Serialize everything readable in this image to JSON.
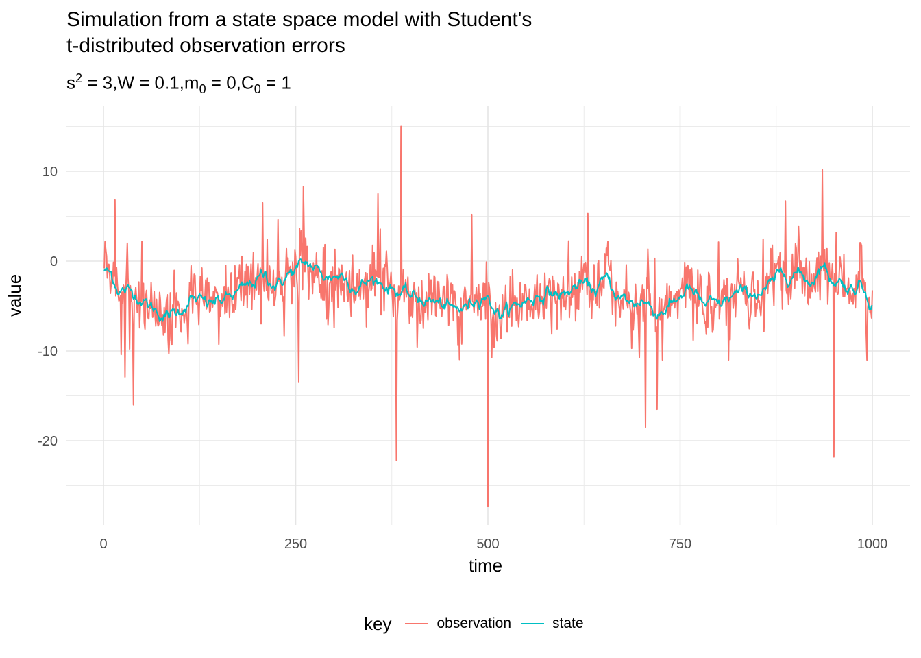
{
  "chart_data": {
    "type": "line",
    "title_lines": [
      "Simulation from a state space model with Student's",
      "t-distributed observation errors"
    ],
    "subtitle": {
      "s_base": "s",
      "s_sup": "2",
      "s_val": " = 3,",
      "w": "W = 0.1,",
      "m_base": "m",
      "m_sub": "0",
      "m_val": " = 0,",
      "c_base": "C",
      "c_sub": "0",
      "c_val": " = 1"
    },
    "xlabel": "time",
    "ylabel": "value",
    "xlim": [
      -20,
      1020
    ],
    "ylim": [
      -29,
      17.5
    ],
    "x_ticks": [
      0,
      250,
      500,
      750,
      1000
    ],
    "x_tick_labels": [
      "0",
      "250",
      "500",
      "750",
      "1000"
    ],
    "y_ticks": [
      10,
      0,
      -10,
      -20
    ],
    "y_tick_labels": [
      "10",
      "0",
      "-10",
      "-20"
    ],
    "grid": true,
    "legend": {
      "title": "key",
      "position": "bottom",
      "entries": [
        {
          "label": "observation",
          "color": "#F8766D"
        },
        {
          "label": "state",
          "color": "#00BFC4"
        }
      ]
    },
    "series": [
      {
        "name": "observation",
        "color": "#F8766D",
        "note": "1000 points, heavy-tailed noise around state; prominent spikes listed",
        "x_start": 1,
        "x_end": 1000,
        "spikes": [
          [
            15,
            6.8
          ],
          [
            23,
            -10.4
          ],
          [
            28,
            -12.9
          ],
          [
            39,
            -16.0
          ],
          [
            50,
            2.2
          ],
          [
            85,
            -10.3
          ],
          [
            207,
            6.5
          ],
          [
            227,
            4.6
          ],
          [
            254,
            -13.5
          ],
          [
            260,
            8.3
          ],
          [
            357,
            7.5
          ],
          [
            381,
            -22.2
          ],
          [
            387,
            15.0
          ],
          [
            479,
            5.2
          ],
          [
            500,
            -27.3
          ],
          [
            630,
            5.3
          ],
          [
            705,
            -18.5
          ],
          [
            720,
            -16.5
          ],
          [
            887,
            6.7
          ],
          [
            935,
            10.2
          ],
          [
            950,
            -21.8
          ]
        ]
      },
      {
        "name": "state",
        "color": "#00BFC4",
        "anchors": [
          [
            1,
            -1.0
          ],
          [
            10,
            -1.5
          ],
          [
            20,
            -3.2
          ],
          [
            40,
            -3.5
          ],
          [
            60,
            -5.0
          ],
          [
            80,
            -6.2
          ],
          [
            95,
            -5.8
          ],
          [
            115,
            -4.2
          ],
          [
            135,
            -4.8
          ],
          [
            160,
            -4.2
          ],
          [
            185,
            -3.0
          ],
          [
            210,
            -1.5
          ],
          [
            225,
            -2.8
          ],
          [
            240,
            -1.5
          ],
          [
            265,
            -0.2
          ],
          [
            290,
            -1.8
          ],
          [
            310,
            -1.5
          ],
          [
            330,
            -3.0
          ],
          [
            350,
            -2.0
          ],
          [
            370,
            -2.8
          ],
          [
            400,
            -4.0
          ],
          [
            430,
            -4.5
          ],
          [
            455,
            -5.5
          ],
          [
            470,
            -5.2
          ],
          [
            495,
            -3.5
          ],
          [
            515,
            -6.0
          ],
          [
            540,
            -4.8
          ],
          [
            560,
            -4.0
          ],
          [
            580,
            -3.5
          ],
          [
            600,
            -3.8
          ],
          [
            620,
            -2.5
          ],
          [
            640,
            -3.2
          ],
          [
            655,
            -2.0
          ],
          [
            670,
            -4.0
          ],
          [
            690,
            -4.8
          ],
          [
            700,
            -4.2
          ],
          [
            720,
            -5.8
          ],
          [
            740,
            -4.8
          ],
          [
            760,
            -3.0
          ],
          [
            780,
            -4.8
          ],
          [
            800,
            -5.0
          ],
          [
            820,
            -3.8
          ],
          [
            840,
            -3.5
          ],
          [
            860,
            -3.5
          ],
          [
            880,
            -1.5
          ],
          [
            900,
            -1.2
          ],
          [
            920,
            -2.3
          ],
          [
            935,
            -0.2
          ],
          [
            945,
            -2.0
          ],
          [
            960,
            -2.2
          ],
          [
            970,
            -3.2
          ],
          [
            985,
            -2.5
          ],
          [
            1000,
            -4.6
          ]
        ]
      }
    ]
  }
}
